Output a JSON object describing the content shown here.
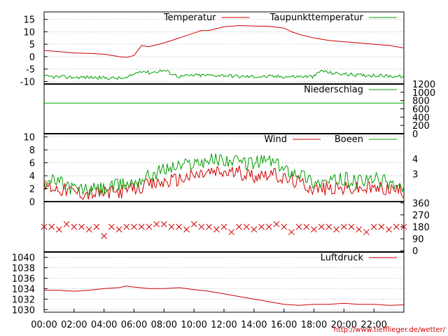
{
  "colors": {
    "red": "#d00000",
    "green": "#00a000",
    "grid": "#999999",
    "url": "#d00000"
  },
  "x_tick_labels": [
    "00:00",
    "02:00",
    "04:00",
    "06:00",
    "08:00",
    "10:00",
    "12:00",
    "14:00",
    "16:00",
    "18:00",
    "20:00",
    "22:00"
  ],
  "source_url": "http://www.tiefflieger.de/wetter/",
  "chart_data": [
    {
      "type": "line",
      "panel": "temperature",
      "x_unit": "hours",
      "xlim": [
        0,
        24
      ],
      "ylim": [
        -11,
        18
      ],
      "yticks": [
        15,
        10,
        5,
        0,
        -5,
        -10
      ],
      "ytick_labels": [
        "15",
        "10",
        "5",
        "0",
        "-5",
        "-10"
      ],
      "grid": true,
      "legend_position": "top-right",
      "series": [
        {
          "name": "Temperatur",
          "color": "#d00000",
          "x": [
            0,
            1,
            2,
            3,
            4,
            5,
            5.5,
            6,
            6.5,
            7,
            8,
            9,
            10,
            10.5,
            11,
            12,
            13,
            14,
            15,
            16,
            16.5,
            17,
            18,
            19,
            20,
            21,
            22,
            23,
            24
          ],
          "y": [
            2.5,
            2,
            1.5,
            1.3,
            1,
            0,
            -0.3,
            0.5,
            4.5,
            4,
            5.5,
            7.5,
            9.5,
            10.5,
            10.5,
            12,
            12.5,
            12.3,
            12.2,
            11.5,
            10,
            9,
            7.5,
            6.5,
            6,
            5.5,
            5,
            4.5,
            3.5
          ]
        },
        {
          "name": "Taupunkttemperatur",
          "color": "#00a000",
          "x": [
            0,
            1,
            2,
            3,
            4,
            5,
            5.5,
            6,
            6.5,
            7,
            8,
            9,
            10,
            11,
            12,
            13,
            14,
            15,
            16,
            17,
            18,
            18.5,
            19,
            20,
            21,
            22,
            23,
            24
          ],
          "y": [
            -8,
            -8.2,
            -8.3,
            -8.3,
            -8.5,
            -8.7,
            -8.7,
            -7,
            -5.5,
            -6.5,
            -5.5,
            -8,
            -7.5,
            -7.5,
            -7.5,
            -8,
            -8,
            -8,
            -8,
            -8,
            -8,
            -5.5,
            -6.5,
            -7,
            -7.5,
            -7.5,
            -7.8,
            -8
          ]
        }
      ]
    },
    {
      "type": "line",
      "panel": "precipitation",
      "x_unit": "hours",
      "xlim": [
        0,
        24
      ],
      "ylim": [
        0,
        1200
      ],
      "yticks": [
        1200,
        1000,
        800,
        600,
        400,
        200,
        0
      ],
      "ytick_labels": [
        "1200",
        "1000",
        "800",
        "600",
        "400",
        "200",
        "0"
      ],
      "y_axis_side": "right",
      "grid": false,
      "legend_position": "top-right",
      "series": [
        {
          "name": "Niederschlag",
          "color": "#00a000",
          "x": [
            0,
            24
          ],
          "y": [
            740,
            740
          ]
        }
      ]
    },
    {
      "type": "line",
      "panel": "wind",
      "x_unit": "hours",
      "xlim": [
        0,
        24
      ],
      "ylim": [
        0,
        10.5
      ],
      "yticks": [
        10,
        8,
        6,
        4,
        2,
        0
      ],
      "ytick_labels": [
        "10",
        "8",
        "6",
        "4",
        "2",
        "0"
      ],
      "right_ytick_labels": [
        {
          "label": "4",
          "value": 6.6
        },
        {
          "label": "3",
          "value": 4.3
        }
      ],
      "grid": true,
      "legend_position": "top-right",
      "series": [
        {
          "name": "Wind",
          "color": "#d00000",
          "x": [
            0,
            1,
            2,
            3,
            4,
            5,
            6,
            7,
            8,
            9,
            10,
            11,
            12,
            13,
            14,
            15,
            16,
            17,
            18,
            19,
            20,
            21,
            22,
            23,
            24
          ],
          "y": [
            2.5,
            2,
            1.5,
            1.2,
            1.3,
            1.5,
            2,
            2.5,
            3,
            3.5,
            4,
            4.5,
            4.5,
            4.5,
            4,
            4.5,
            3.5,
            3,
            2,
            2,
            2,
            2,
            2,
            2,
            1.5
          ]
        },
        {
          "name": "Boeen",
          "color": "#00a000",
          "x": [
            0,
            1,
            2,
            3,
            4,
            5,
            6,
            7,
            8,
            9,
            10,
            11,
            12,
            13,
            14,
            15,
            16,
            17,
            18,
            19,
            20,
            21,
            22,
            23,
            24
          ],
          "y": [
            3.5,
            3,
            2,
            1.8,
            2,
            2.5,
            3,
            4,
            5,
            5.5,
            6,
            6.5,
            6.5,
            6,
            6,
            6.5,
            5,
            4.5,
            3,
            3,
            3.5,
            3,
            3.5,
            3,
            2
          ]
        }
      ]
    },
    {
      "type": "scatter",
      "panel": "wind_direction",
      "x_unit": "hours",
      "xlim": [
        0,
        24
      ],
      "ylim": [
        -10,
        370
      ],
      "yticks": [
        360,
        270,
        180,
        90,
        0
      ],
      "ytick_labels": [
        "360",
        "270",
        "180",
        "90",
        "0"
      ],
      "y_axis_side": "right",
      "grid": false,
      "marker": "x",
      "series": [
        {
          "color": "#d00000",
          "x": [
            0,
            0.5,
            1,
            1.5,
            2,
            2.5,
            3,
            3.5,
            4,
            4.5,
            5,
            5.5,
            6,
            6.5,
            7,
            7.5,
            8,
            8.5,
            9,
            9.5,
            10,
            10.5,
            11,
            11.5,
            12,
            12.5,
            13,
            13.5,
            14,
            14.5,
            15,
            15.5,
            16,
            16.5,
            17,
            17.5,
            18,
            18.5,
            19,
            19.5,
            20,
            20.5,
            21,
            21.5,
            22,
            22.5,
            23,
            23.5,
            24
          ],
          "y": [
            180,
            180,
            160,
            200,
            180,
            180,
            160,
            180,
            110,
            180,
            160,
            180,
            180,
            180,
            180,
            200,
            200,
            180,
            180,
            160,
            200,
            180,
            180,
            160,
            180,
            140,
            180,
            180,
            160,
            180,
            180,
            200,
            180,
            140,
            180,
            180,
            160,
            180,
            180,
            160,
            180,
            180,
            160,
            140,
            180,
            180,
            160,
            180,
            180
          ]
        }
      ]
    },
    {
      "type": "line",
      "panel": "pressure",
      "x_unit": "hours",
      "xlim": [
        0,
        24
      ],
      "ylim": [
        1029.5,
        1041
      ],
      "yticks": [
        1040,
        1038,
        1036,
        1034,
        1032,
        1030
      ],
      "ytick_labels": [
        "1040",
        "1038",
        "1036",
        "1034",
        "1032",
        "1030"
      ],
      "grid": true,
      "legend_position": "top-right",
      "series": [
        {
          "name": "Luftdruck",
          "color": "#d00000",
          "x": [
            0,
            1,
            2,
            3,
            4,
            5,
            5.5,
            6,
            7,
            8,
            9,
            10,
            11,
            12,
            13,
            14,
            15,
            16,
            17,
            18,
            19,
            20,
            21,
            22,
            23,
            24
          ],
          "y": [
            1033.7,
            1033.7,
            1033.5,
            1033.7,
            1034,
            1034.2,
            1034.5,
            1034.3,
            1034,
            1034,
            1034.2,
            1033.8,
            1033.5,
            1033,
            1032.5,
            1032,
            1031.5,
            1031,
            1030.8,
            1031,
            1031,
            1031.2,
            1031,
            1031,
            1030.8,
            1030.9
          ]
        }
      ]
    }
  ]
}
